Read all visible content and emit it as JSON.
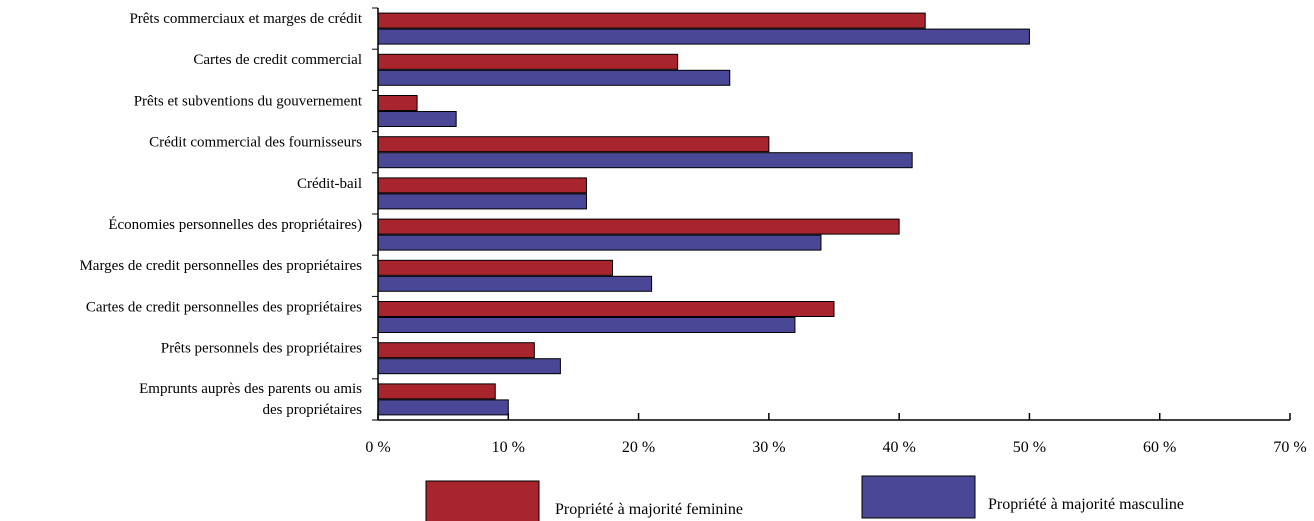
{
  "chart_data": {
    "type": "bar",
    "orientation": "horizontal",
    "categories": [
      [
        "Prêts commerciaux et marges de crédit"
      ],
      [
        "Cartes de credit commercial"
      ],
      [
        "Prêts et subventions du gouvernement"
      ],
      [
        "Crédit commercial des fournisseurs"
      ],
      [
        "Crédit-bail"
      ],
      [
        "Économies personnelles des propriétaires)"
      ],
      [
        "Marges de credit personnelles des propriétaires"
      ],
      [
        "Cartes de credit personnelles des propriétaires"
      ],
      [
        "Prêts personnels des propriétaires"
      ],
      [
        "Emprunts auprès des parents ou amis",
        "des propriétaires"
      ]
    ],
    "series": [
      {
        "name": "Propriété à majorité feminine",
        "color": "#A8252E",
        "values": [
          42,
          23,
          3,
          30,
          16,
          40,
          18,
          35,
          12,
          9
        ]
      },
      {
        "name": "Propriété à majorité masculine",
        "color": "#4A4896",
        "values": [
          50,
          27,
          6,
          41,
          16,
          34,
          21,
          32,
          14,
          10
        ]
      }
    ],
    "xlim": [
      0,
      70
    ],
    "x_ticks": [
      0,
      10,
      20,
      30,
      40,
      50,
      60,
      70
    ],
    "x_tick_labels": [
      "0 %",
      "10 %",
      "20 %",
      "30 %",
      "40 %",
      "50 %",
      "60 %",
      "70 %"
    ],
    "grid": false,
    "legend_position": "bottom"
  }
}
